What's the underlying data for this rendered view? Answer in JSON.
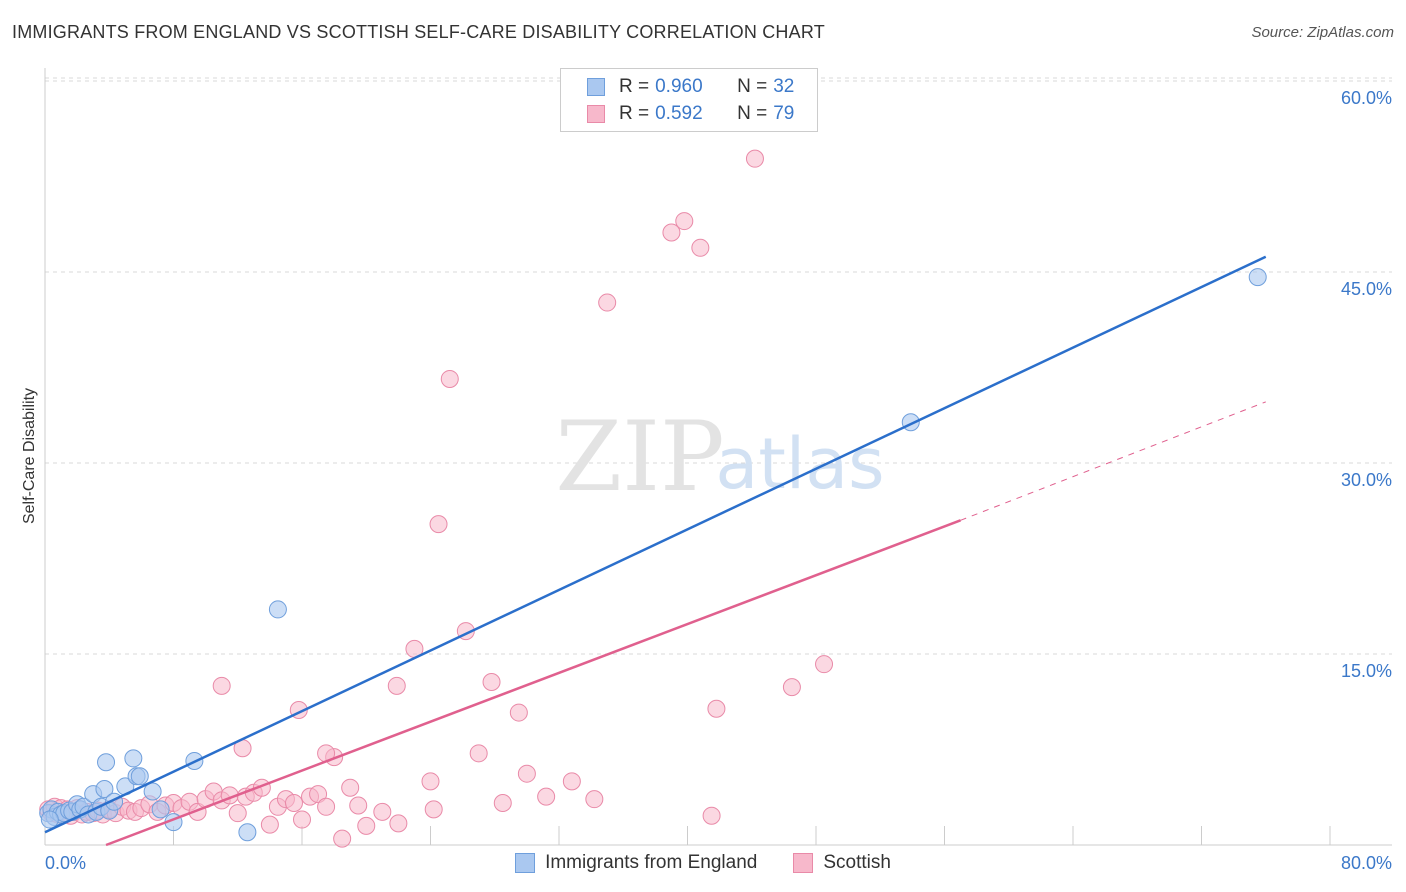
{
  "header": {
    "title": "IMMIGRANTS FROM ENGLAND VS SCOTTISH SELF-CARE DISABILITY CORRELATION CHART",
    "source": "Source: ZipAtlas.com"
  },
  "watermark": {
    "zip": "ZIP",
    "atlas": "atlas"
  },
  "legend": {
    "series1": {
      "r_label": "R =",
      "r_value": "0.960",
      "n_label": "N =",
      "n_value": "32"
    },
    "series2": {
      "r_label": "R =",
      "r_value": "0.592",
      "n_label": "N =",
      "n_value": "79"
    }
  },
  "colors": {
    "blue_fill": "#aac8f0",
    "blue_stroke": "#6f9fdc",
    "blue_line": "#2b6fcb",
    "pink_fill": "#f7b8cb",
    "pink_stroke": "#e98aa8",
    "pink_line": "#e0608e",
    "axis_text": "#3b78c9",
    "grid": "#d9d9d9"
  },
  "chart_data": {
    "type": "scatter",
    "title": "IMMIGRANTS FROM ENGLAND VS SCOTTISH SELF-CARE DISABILITY CORRELATION CHART",
    "xlabel": "",
    "ylabel": "Self-Care Disability",
    "xlim": [
      0,
      80
    ],
    "ylim": [
      0,
      63
    ],
    "x_tick_labels": [
      "0.0%",
      "80.0%"
    ],
    "y_ticks": [
      15,
      30,
      45,
      60
    ],
    "y_tick_labels": [
      "15.0%",
      "30.0%",
      "45.0%",
      "60.0%"
    ],
    "legend_position": "top-center",
    "series": [
      {
        "name": "Immigrants from England",
        "r": 0.96,
        "n": 32,
        "trend": {
          "x0": 0,
          "y0": 1.0,
          "x1": 76,
          "y1": 46.2
        },
        "points": [
          [
            0.2,
            2.5
          ],
          [
            0.4,
            2.8
          ],
          [
            0.6,
            2.2
          ],
          [
            0.8,
            2.6
          ],
          [
            1.0,
            2.4
          ],
          [
            1.2,
            2.5
          ],
          [
            1.5,
            2.7
          ],
          [
            1.7,
            2.6
          ],
          [
            2.0,
            3.2
          ],
          [
            2.2,
            2.8
          ],
          [
            2.4,
            3.0
          ],
          [
            2.7,
            2.4
          ],
          [
            3.0,
            4.0
          ],
          [
            3.2,
            2.6
          ],
          [
            3.5,
            3.0
          ],
          [
            3.7,
            4.4
          ],
          [
            4.0,
            2.7
          ],
          [
            4.3,
            3.4
          ],
          [
            3.8,
            6.5
          ],
          [
            5.0,
            4.6
          ],
          [
            5.7,
            5.4
          ],
          [
            5.9,
            5.4
          ],
          [
            5.5,
            6.8
          ],
          [
            6.7,
            4.2
          ],
          [
            7.2,
            2.8
          ],
          [
            9.3,
            6.6
          ],
          [
            12.6,
            1.0
          ],
          [
            14.5,
            18.5
          ],
          [
            53.9,
            33.2
          ],
          [
            75.5,
            44.6
          ],
          [
            0.3,
            2.0
          ],
          [
            8.0,
            1.8
          ]
        ]
      },
      {
        "name": "Scottish",
        "r": 0.592,
        "n": 79,
        "trend": {
          "x0": 3.8,
          "y0": 0,
          "x1": 57,
          "y1": 25.5
        },
        "trend_dashed": {
          "x0": 57,
          "y0": 25.5,
          "x1": 76,
          "y1": 34.8
        },
        "points": [
          [
            0.2,
            2.8
          ],
          [
            0.4,
            2.5
          ],
          [
            0.6,
            3.0
          ],
          [
            0.8,
            2.4
          ],
          [
            1.0,
            2.9
          ],
          [
            1.2,
            2.5
          ],
          [
            1.4,
            2.8
          ],
          [
            1.6,
            2.3
          ],
          [
            1.8,
            2.6
          ],
          [
            2.0,
            2.9
          ],
          [
            2.3,
            2.4
          ],
          [
            2.6,
            2.6
          ],
          [
            3.0,
            2.5
          ],
          [
            3.3,
            2.7
          ],
          [
            3.6,
            2.4
          ],
          [
            4.0,
            2.8
          ],
          [
            4.4,
            2.5
          ],
          [
            4.8,
            3.0
          ],
          [
            5.2,
            2.7
          ],
          [
            5.6,
            2.6
          ],
          [
            6.0,
            2.9
          ],
          [
            6.5,
            3.2
          ],
          [
            7.0,
            2.6
          ],
          [
            7.5,
            3.1
          ],
          [
            8.0,
            3.3
          ],
          [
            8.5,
            2.9
          ],
          [
            9.0,
            3.4
          ],
          [
            9.5,
            2.6
          ],
          [
            10.0,
            3.6
          ],
          [
            10.5,
            4.2
          ],
          [
            11.0,
            3.5
          ],
          [
            11.5,
            3.9
          ],
          [
            12.0,
            2.5
          ],
          [
            12.5,
            3.8
          ],
          [
            13.0,
            4.1
          ],
          [
            13.5,
            4.5
          ],
          [
            14.0,
            1.6
          ],
          [
            14.5,
            3.0
          ],
          [
            15.0,
            3.6
          ],
          [
            15.5,
            3.3
          ],
          [
            16.0,
            2.0
          ],
          [
            16.5,
            3.8
          ],
          [
            17.0,
            4.0
          ],
          [
            17.5,
            3.0
          ],
          [
            18.0,
            6.9
          ],
          [
            18.5,
            0.5
          ],
          [
            19.0,
            4.5
          ],
          [
            19.5,
            3.1
          ],
          [
            20.0,
            1.5
          ],
          [
            21.0,
            2.6
          ],
          [
            22.0,
            1.7
          ],
          [
            23.0,
            15.4
          ],
          [
            24.0,
            5.0
          ],
          [
            24.2,
            2.8
          ],
          [
            24.5,
            25.2
          ],
          [
            25.2,
            36.6
          ],
          [
            26.2,
            16.8
          ],
          [
            27.0,
            7.2
          ],
          [
            27.8,
            12.8
          ],
          [
            28.5,
            3.3
          ],
          [
            29.5,
            10.4
          ],
          [
            30.0,
            5.6
          ],
          [
            31.2,
            3.8
          ],
          [
            32.8,
            5.0
          ],
          [
            34.2,
            3.6
          ],
          [
            35.0,
            42.6
          ],
          [
            39.0,
            48.1
          ],
          [
            39.8,
            49.0
          ],
          [
            40.8,
            46.9
          ],
          [
            41.5,
            2.3
          ],
          [
            41.8,
            10.7
          ],
          [
            44.2,
            53.9
          ],
          [
            46.5,
            12.4
          ],
          [
            48.5,
            14.2
          ],
          [
            11.0,
            12.5
          ],
          [
            12.3,
            7.6
          ],
          [
            15.8,
            10.6
          ],
          [
            17.5,
            7.2
          ],
          [
            21.9,
            12.5
          ]
        ]
      }
    ]
  },
  "bottom_legend": {
    "series1_label": "Immigrants from England",
    "series2_label": "Scottish"
  }
}
